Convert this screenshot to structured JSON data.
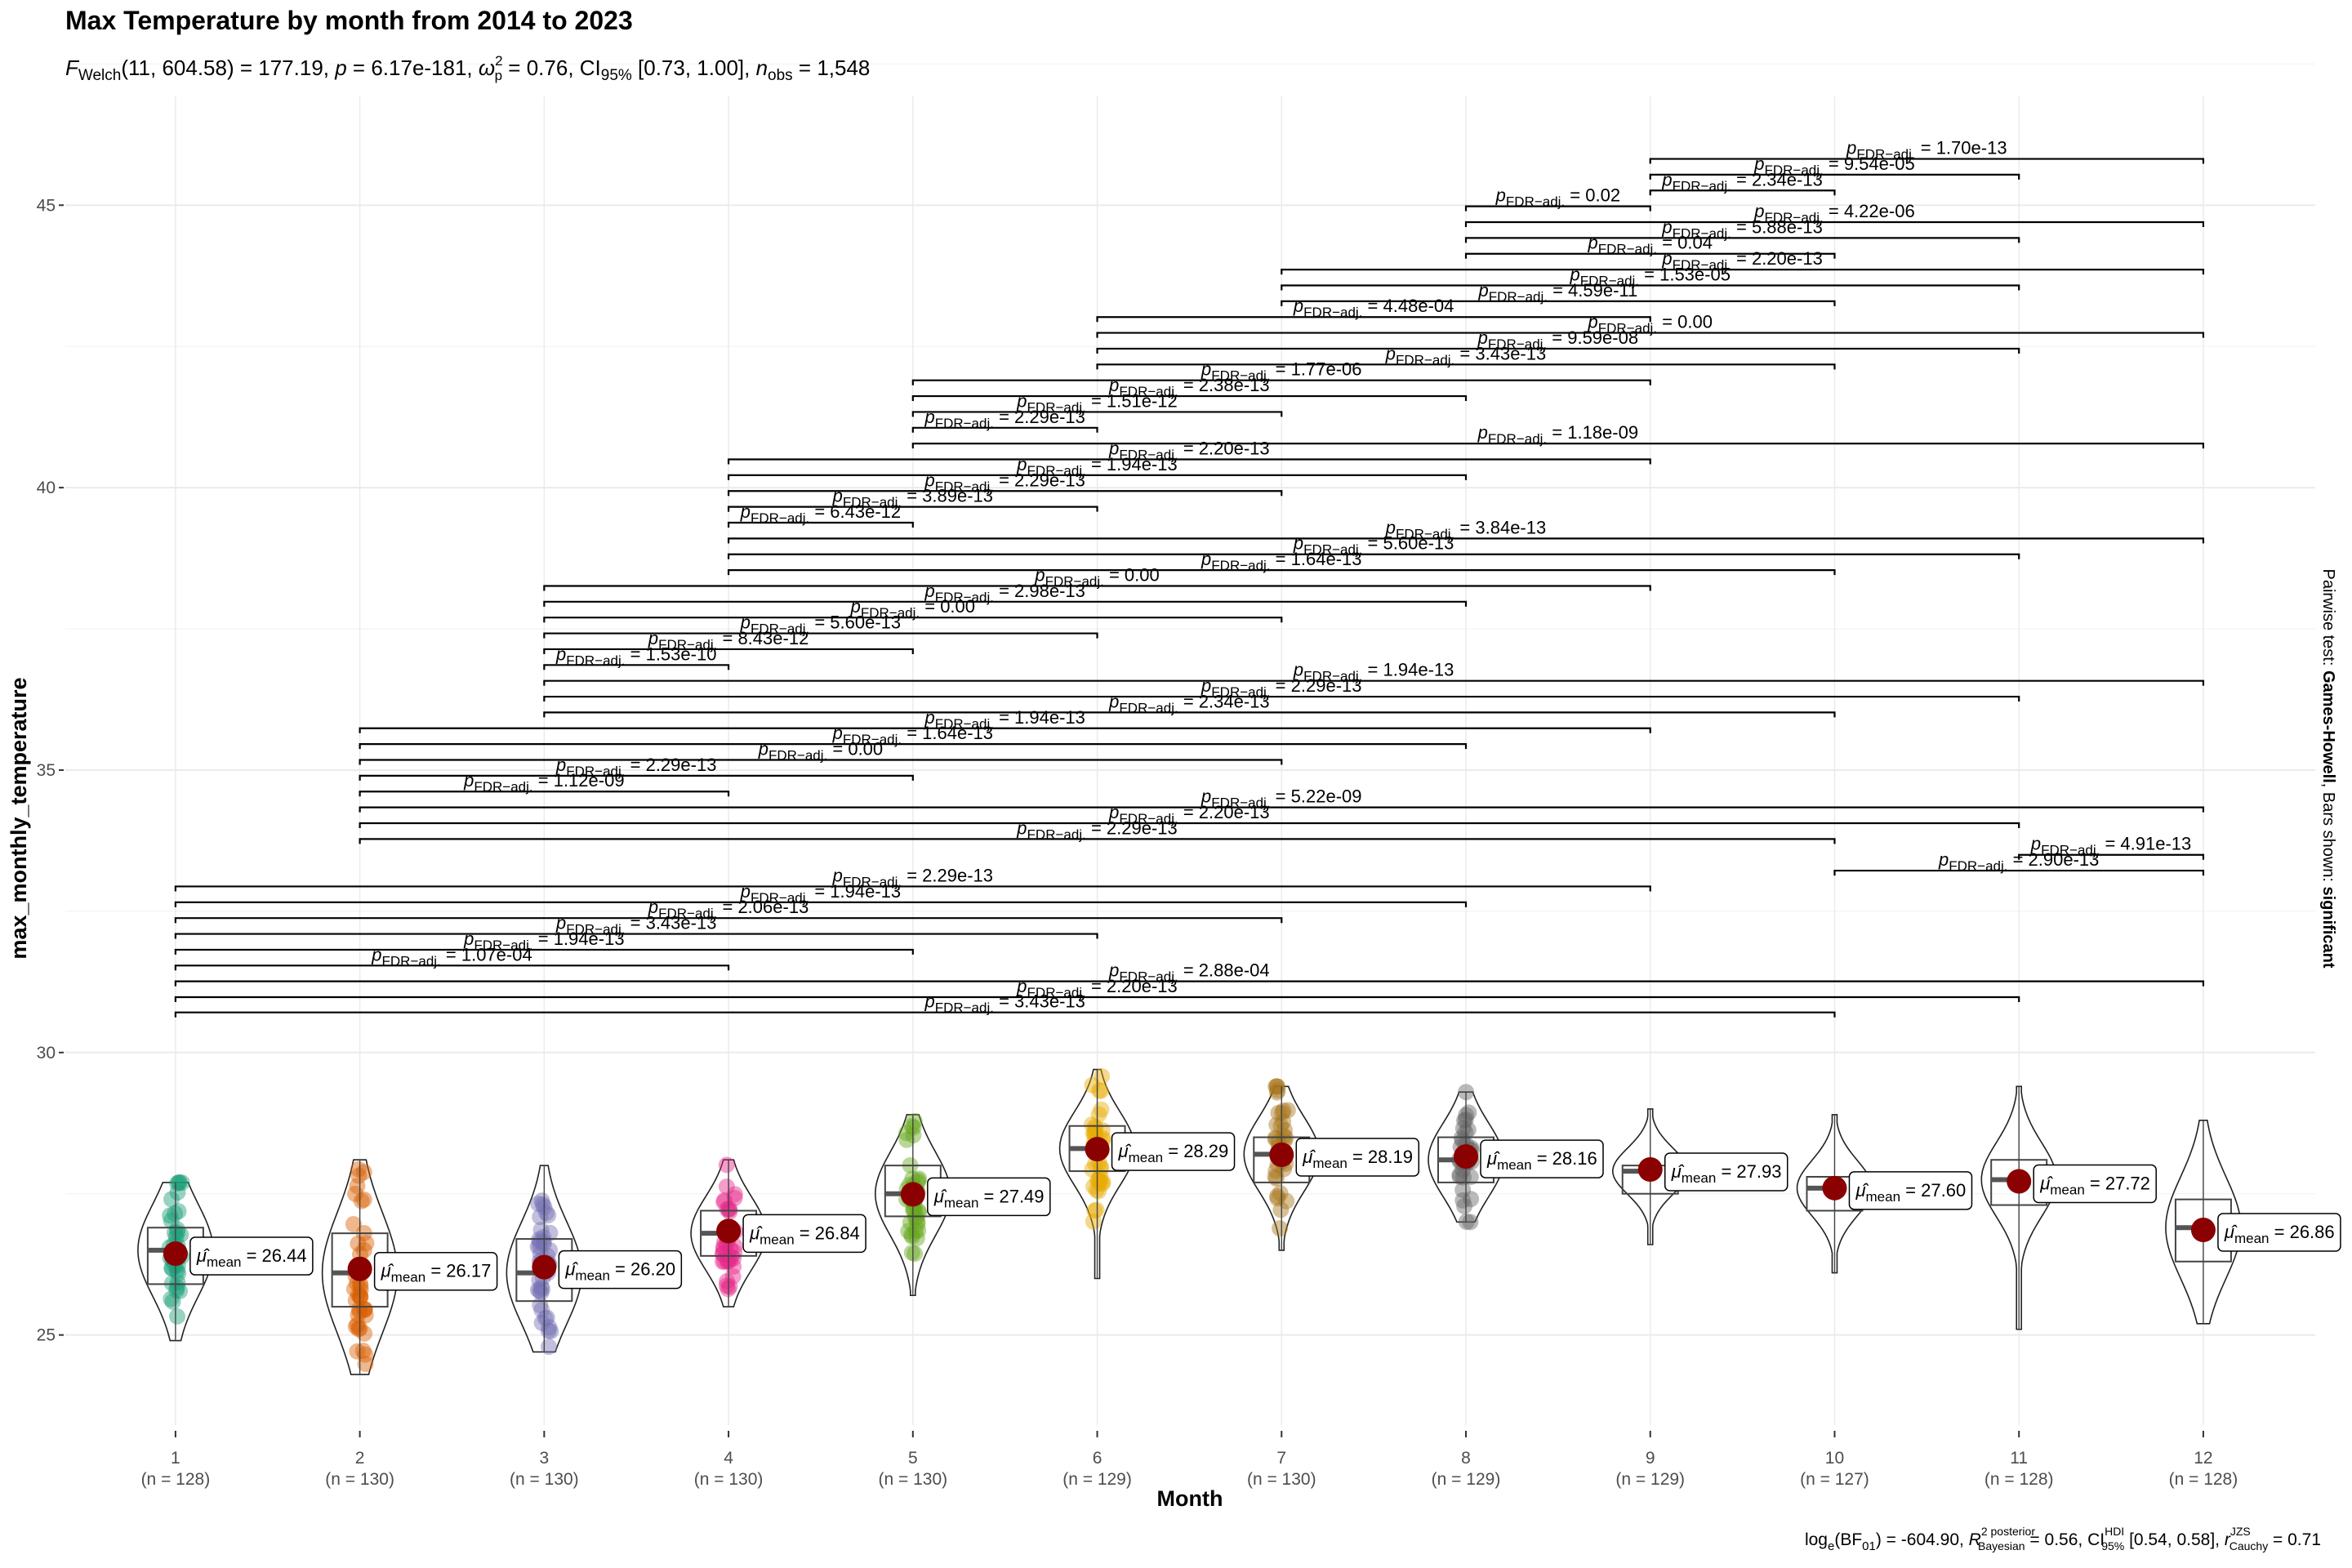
{
  "chart_data": {
    "type": "violin",
    "title": "Max Temperature by month from 2014 to 2023",
    "subtitle": "F_Welch(11, 604.58) = 177.19, p = 6.17e-181, ω̂²_p = 0.76, CI95% [0.73, 1.00], n_obs = 1,548",
    "subtitle_parts": {
      "stat": "F",
      "stat_sub": "Welch",
      "df": "(11, 604.58)",
      "stat_value": " = 177.19, ",
      "p": "p",
      "p_value": " = 6.17e-181, ",
      "effsize": "ω",
      "effsize_sup": "2",
      "effsize_sub": "p",
      "effsize_value": " = 0.76, CI",
      "ci_sub": "95%",
      "ci_value": " [0.73, 1.00], ",
      "n": "n",
      "n_sub": "obs",
      "n_value": " = 1,548"
    },
    "caption_parts": {
      "a": "log",
      "a_sub": "e",
      "b": "(BF",
      "b_sub": "01",
      "c": ") = -604.90, ",
      "r": "R",
      "r_sup": "2 posterior",
      "r_sub": "Bayesian",
      "d": " = 0.56, CI",
      "ci_sup": "HDI",
      "ci_sub": "95%",
      "e": " [0.54, 0.58], ",
      "rc": "r",
      "rc_sup": "JZS",
      "rc_sub": "Cauchy",
      "f": " = 0.71"
    },
    "xlabel": "Month",
    "ylabel": "max_monthly_temperature",
    "side_label": {
      "prefix": "Pairwise test: ",
      "test": "Games-Howell",
      "mid": ", Bars shown: ",
      "shown": "significant"
    },
    "ylim": [
      23.4,
      46.8
    ],
    "yticks": [
      25,
      30,
      35,
      40,
      45
    ],
    "grid": true,
    "categories": [
      "1",
      "2",
      "3",
      "4",
      "5",
      "6",
      "7",
      "8",
      "9",
      "10",
      "11",
      "12"
    ],
    "n": [
      128,
      130,
      130,
      130,
      130,
      129,
      130,
      129,
      129,
      127,
      128,
      128
    ],
    "colors": [
      "#1B9E77",
      "#D95F02",
      "#7570B3",
      "#E7298A",
      "#66A61E",
      "#E6AB02",
      "#A6761D",
      "#666666",
      "#1B9E77",
      "#D95F02",
      "#7570B3",
      "#E7298A"
    ],
    "points_visible": [
      true,
      true,
      true,
      true,
      true,
      true,
      true,
      true,
      false,
      false,
      false,
      false
    ],
    "means": [
      26.44,
      26.17,
      26.2,
      26.84,
      27.49,
      28.29,
      28.19,
      28.16,
      27.93,
      27.6,
      27.72,
      26.86
    ],
    "mean_label_prefix": "μ̂",
    "mean_label_sub": "mean",
    "medians": [
      26.5,
      26.1,
      26.1,
      26.8,
      27.5,
      28.3,
      28.2,
      28.1,
      27.9,
      27.6,
      27.75,
      26.9
    ],
    "q1": [
      25.9,
      25.5,
      25.6,
      26.4,
      27.1,
      27.9,
      27.7,
      27.7,
      27.5,
      27.2,
      27.3,
      26.3
    ],
    "q3": [
      26.9,
      26.8,
      26.7,
      27.2,
      28.0,
      28.7,
      28.5,
      28.5,
      28.0,
      27.8,
      28.1,
      27.4
    ],
    "min": [
      24.9,
      24.3,
      24.7,
      25.5,
      25.7,
      26.0,
      26.5,
      27.0,
      26.6,
      26.1,
      25.1,
      25.2
    ],
    "max": [
      27.7,
      28.1,
      28.0,
      28.1,
      28.9,
      29.7,
      29.4,
      29.3,
      29.0,
      28.9,
      29.4,
      28.8
    ],
    "pairwise": [
      {
        "g1": 1,
        "g2": 10,
        "y": 30.71,
        "p": "3.43e-13"
      },
      {
        "g1": 1,
        "g2": 11,
        "y": 30.98,
        "p": "2.20e-13"
      },
      {
        "g1": 1,
        "g2": 12,
        "y": 31.26,
        "p": "2.88e-04"
      },
      {
        "g1": 1,
        "g2": 4,
        "y": 31.54,
        "p": "1.07e-04"
      },
      {
        "g1": 1,
        "g2": 5,
        "y": 31.82,
        "p": "1.94e-13"
      },
      {
        "g1": 1,
        "g2": 6,
        "y": 32.1,
        "p": "3.43e-13"
      },
      {
        "g1": 1,
        "g2": 7,
        "y": 32.38,
        "p": "2.06e-13"
      },
      {
        "g1": 1,
        "g2": 8,
        "y": 32.66,
        "p": "1.94e-13"
      },
      {
        "g1": 1,
        "g2": 9,
        "y": 32.94,
        "p": "2.29e-13"
      },
      {
        "g1": 10,
        "g2": 12,
        "y": 33.22,
        "p": "2.90e-13"
      },
      {
        "g1": 11,
        "g2": 12,
        "y": 33.5,
        "p": "4.91e-13"
      },
      {
        "g1": 2,
        "g2": 10,
        "y": 33.78,
        "p": "2.29e-13"
      },
      {
        "g1": 2,
        "g2": 11,
        "y": 34.06,
        "p": "2.20e-13"
      },
      {
        "g1": 2,
        "g2": 12,
        "y": 34.34,
        "p": "5.22e-09"
      },
      {
        "g1": 2,
        "g2": 4,
        "y": 34.62,
        "p": "1.12e-09"
      },
      {
        "g1": 2,
        "g2": 5,
        "y": 34.9,
        "p": "2.29e-13"
      },
      {
        "g1": 2,
        "g2": 7,
        "y": 35.18,
        "p": "0.00"
      },
      {
        "g1": 2,
        "g2": 8,
        "y": 35.46,
        "p": "1.64e-13"
      },
      {
        "g1": 2,
        "g2": 9,
        "y": 35.74,
        "p": "1.94e-13"
      },
      {
        "g1": 3,
        "g2": 10,
        "y": 36.02,
        "p": "2.34e-13"
      },
      {
        "g1": 3,
        "g2": 11,
        "y": 36.3,
        "p": "2.29e-13"
      },
      {
        "g1": 3,
        "g2": 12,
        "y": 36.58,
        "p": "1.94e-13"
      },
      {
        "g1": 3,
        "g2": 4,
        "y": 36.86,
        "p": "1.53e-10"
      },
      {
        "g1": 3,
        "g2": 5,
        "y": 37.14,
        "p": "8.43e-12"
      },
      {
        "g1": 3,
        "g2": 6,
        "y": 37.42,
        "p": "5.60e-13"
      },
      {
        "g1": 3,
        "g2": 7,
        "y": 37.7,
        "p": "0.00"
      },
      {
        "g1": 3,
        "g2": 8,
        "y": 37.98,
        "p": "2.98e-13"
      },
      {
        "g1": 3,
        "g2": 9,
        "y": 38.26,
        "p": "0.00"
      },
      {
        "g1": 4,
        "g2": 10,
        "y": 38.54,
        "p": "1.64e-13"
      },
      {
        "g1": 4,
        "g2": 11,
        "y": 38.82,
        "p": "5.60e-13"
      },
      {
        "g1": 4,
        "g2": 12,
        "y": 39.1,
        "p": "3.84e-13"
      },
      {
        "g1": 4,
        "g2": 5,
        "y": 39.38,
        "p": "6.43e-12"
      },
      {
        "g1": 4,
        "g2": 6,
        "y": 39.66,
        "p": "3.89e-13"
      },
      {
        "g1": 4,
        "g2": 7,
        "y": 39.94,
        "p": "2.29e-13"
      },
      {
        "g1": 4,
        "g2": 8,
        "y": 40.22,
        "p": "1.94e-13"
      },
      {
        "g1": 4,
        "g2": 9,
        "y": 40.5,
        "p": "2.20e-13"
      },
      {
        "g1": 5,
        "g2": 12,
        "y": 40.78,
        "p": "1.18e-09"
      },
      {
        "g1": 5,
        "g2": 6,
        "y": 41.06,
        "p": "2.29e-13"
      },
      {
        "g1": 5,
        "g2": 7,
        "y": 41.34,
        "p": "1.51e-12"
      },
      {
        "g1": 5,
        "g2": 8,
        "y": 41.62,
        "p": "2.38e-13"
      },
      {
        "g1": 5,
        "g2": 9,
        "y": 41.9,
        "p": "1.77e-06"
      },
      {
        "g1": 6,
        "g2": 10,
        "y": 42.18,
        "p": "3.43e-13"
      },
      {
        "g1": 6,
        "g2": 11,
        "y": 42.46,
        "p": "9.59e-08"
      },
      {
        "g1": 6,
        "g2": 12,
        "y": 42.74,
        "p": "0.00"
      },
      {
        "g1": 6,
        "g2": 9,
        "y": 43.02,
        "p": "4.48e-04"
      },
      {
        "g1": 7,
        "g2": 10,
        "y": 43.3,
        "p": "4.59e-11"
      },
      {
        "g1": 7,
        "g2": 11,
        "y": 43.58,
        "p": "1.53e-05"
      },
      {
        "g1": 7,
        "g2": 12,
        "y": 43.86,
        "p": "2.20e-13"
      },
      {
        "g1": 8,
        "g2": 10,
        "y": 44.14,
        "p": "0.04"
      },
      {
        "g1": 8,
        "g2": 11,
        "y": 44.42,
        "p": "5.88e-13"
      },
      {
        "g1": 8,
        "g2": 12,
        "y": 44.7,
        "p": "4.22e-06"
      },
      {
        "g1": 8,
        "g2": 9,
        "y": 44.98,
        "p": "0.02"
      },
      {
        "g1": 9,
        "g2": 10,
        "y": 45.26,
        "p": "2.34e-13"
      },
      {
        "g1": 9,
        "g2": 11,
        "y": 45.54,
        "p": "9.54e-05"
      },
      {
        "g1": 9,
        "g2": 12,
        "y": 45.82,
        "p": "1.70e-13"
      }
    ],
    "pairwise_label_prefix": "p",
    "pairwise_label_sub": "FDR−adj.",
    "pairwise_label_eq": " = ",
    "mean_point_color": "#8B0000"
  }
}
